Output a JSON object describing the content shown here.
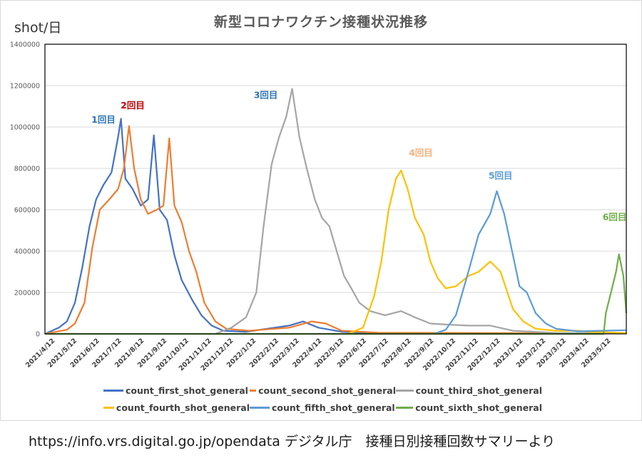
{
  "header": {
    "title": "新型コロナワクチン接種状況推移",
    "y_unit": "shot/日"
  },
  "footer": {
    "source": "https://info.vrs.digital.go.jp/opendata  デジタル庁　接種日別接種回数サマリーより"
  },
  "chart_data": {
    "type": "line",
    "title": "新型コロナワクチン接種状況推移",
    "ylabel": "shot/日",
    "ylim": [
      0,
      1400000
    ],
    "yticks": [
      0,
      200000,
      400000,
      600000,
      800000,
      1000000,
      1200000,
      1400000
    ],
    "xlim": [
      "2021-04-01",
      "2023-06-05"
    ],
    "xticks": [
      "2021/4/12",
      "2021/5/12",
      "2021/6/12",
      "2021/7/12",
      "2021/8/12",
      "2021/9/12",
      "2021/10/12",
      "2021/11/12",
      "2021/12/12",
      "2022/1/12",
      "2022/2/12",
      "2022/3/12",
      "2022/4/12",
      "2022/5/12",
      "2022/6/12",
      "2022/7/12",
      "2022/8/12",
      "2022/9/12",
      "2022/10/12",
      "2022/11/12",
      "2022/12/12",
      "2023/1/12",
      "2023/2/12",
      "2023/3/12",
      "2023/4/12",
      "2023/5/12"
    ],
    "grid": true,
    "legend_position": "bottom",
    "series": [
      {
        "name": "count_first_shot_general",
        "color": "#4472C4",
        "points": [
          [
            "2021-04-01",
            0
          ],
          [
            "2021-04-20",
            30000
          ],
          [
            "2021-05-01",
            60000
          ],
          [
            "2021-05-12",
            150000
          ],
          [
            "2021-05-22",
            320000
          ],
          [
            "2021-06-01",
            520000
          ],
          [
            "2021-06-10",
            650000
          ],
          [
            "2021-06-20",
            720000
          ],
          [
            "2021-07-01",
            780000
          ],
          [
            "2021-07-10",
            950000
          ],
          [
            "2021-07-14",
            1040000
          ],
          [
            "2021-07-20",
            750000
          ],
          [
            "2021-07-30",
            700000
          ],
          [
            "2021-08-10",
            620000
          ],
          [
            "2021-08-20",
            650000
          ],
          [
            "2021-08-28",
            960000
          ],
          [
            "2021-09-05",
            600000
          ],
          [
            "2021-09-15",
            550000
          ],
          [
            "2021-09-25",
            380000
          ],
          [
            "2021-10-05",
            260000
          ],
          [
            "2021-10-20",
            160000
          ],
          [
            "2021-11-01",
            90000
          ],
          [
            "2021-11-15",
            40000
          ],
          [
            "2021-12-01",
            15000
          ],
          [
            "2022-01-01",
            10000
          ],
          [
            "2022-03-01",
            40000
          ],
          [
            "2022-03-20",
            60000
          ],
          [
            "2022-04-10",
            30000
          ],
          [
            "2022-05-12",
            10000
          ],
          [
            "2022-07-01",
            5000
          ],
          [
            "2022-12-01",
            3000
          ],
          [
            "2023-06-05",
            2000
          ]
        ]
      },
      {
        "name": "count_second_shot_general",
        "color": "#ED7D31",
        "points": [
          [
            "2021-04-01",
            0
          ],
          [
            "2021-05-01",
            20000
          ],
          [
            "2021-05-12",
            50000
          ],
          [
            "2021-05-25",
            150000
          ],
          [
            "2021-06-05",
            420000
          ],
          [
            "2021-06-15",
            600000
          ],
          [
            "2021-06-28",
            650000
          ],
          [
            "2021-07-10",
            700000
          ],
          [
            "2021-07-18",
            800000
          ],
          [
            "2021-07-25",
            1005000
          ],
          [
            "2021-08-01",
            800000
          ],
          [
            "2021-08-10",
            650000
          ],
          [
            "2021-08-20",
            580000
          ],
          [
            "2021-09-01",
            600000
          ],
          [
            "2021-09-10",
            620000
          ],
          [
            "2021-09-18",
            945000
          ],
          [
            "2021-09-25",
            620000
          ],
          [
            "2021-10-05",
            540000
          ],
          [
            "2021-10-15",
            400000
          ],
          [
            "2021-10-25",
            300000
          ],
          [
            "2021-11-05",
            150000
          ],
          [
            "2021-11-20",
            60000
          ],
          [
            "2021-12-05",
            25000
          ],
          [
            "2022-01-05",
            15000
          ],
          [
            "2022-03-01",
            30000
          ],
          [
            "2022-04-01",
            60000
          ],
          [
            "2022-04-20",
            50000
          ],
          [
            "2022-05-12",
            15000
          ],
          [
            "2022-07-01",
            6000
          ],
          [
            "2023-06-05",
            2000
          ]
        ]
      },
      {
        "name": "count_third_shot_general",
        "color": "#A5A5A5",
        "points": [
          [
            "2021-11-20",
            0
          ],
          [
            "2021-12-12",
            30000
          ],
          [
            "2022-01-01",
            80000
          ],
          [
            "2022-01-15",
            200000
          ],
          [
            "2022-01-25",
            520000
          ],
          [
            "2022-02-05",
            820000
          ],
          [
            "2022-02-15",
            950000
          ],
          [
            "2022-02-25",
            1050000
          ],
          [
            "2022-03-05",
            1185000
          ],
          [
            "2022-03-15",
            950000
          ],
          [
            "2022-03-25",
            800000
          ],
          [
            "2022-04-05",
            650000
          ],
          [
            "2022-04-15",
            560000
          ],
          [
            "2022-04-25",
            520000
          ],
          [
            "2022-05-05",
            400000
          ],
          [
            "2022-05-15",
            280000
          ],
          [
            "2022-05-25",
            220000
          ],
          [
            "2022-06-05",
            150000
          ],
          [
            "2022-06-20",
            110000
          ],
          [
            "2022-07-10",
            90000
          ],
          [
            "2022-08-01",
            110000
          ],
          [
            "2022-08-20",
            80000
          ],
          [
            "2022-09-10",
            50000
          ],
          [
            "2022-10-01",
            45000
          ],
          [
            "2022-11-01",
            40000
          ],
          [
            "2022-12-01",
            40000
          ],
          [
            "2023-01-01",
            15000
          ],
          [
            "2023-03-01",
            5000
          ],
          [
            "2023-06-05",
            2000
          ]
        ]
      },
      {
        "name": "count_fourth_shot_general",
        "color": "#FFC000",
        "points": [
          [
            "2022-05-20",
            0
          ],
          [
            "2022-06-10",
            30000
          ],
          [
            "2022-06-25",
            180000
          ],
          [
            "2022-07-05",
            350000
          ],
          [
            "2022-07-15",
            600000
          ],
          [
            "2022-07-25",
            750000
          ],
          [
            "2022-08-01",
            790000
          ],
          [
            "2022-08-10",
            700000
          ],
          [
            "2022-08-20",
            560000
          ],
          [
            "2022-09-01",
            480000
          ],
          [
            "2022-09-10",
            350000
          ],
          [
            "2022-09-20",
            270000
          ],
          [
            "2022-10-01",
            220000
          ],
          [
            "2022-10-15",
            230000
          ],
          [
            "2022-11-01",
            280000
          ],
          [
            "2022-11-15",
            300000
          ],
          [
            "2022-12-01",
            350000
          ],
          [
            "2022-12-15",
            300000
          ],
          [
            "2023-01-01",
            120000
          ],
          [
            "2023-01-15",
            60000
          ],
          [
            "2023-02-01",
            25000
          ],
          [
            "2023-03-01",
            15000
          ],
          [
            "2023-04-01",
            15000
          ],
          [
            "2023-04-15",
            10000
          ],
          [
            "2023-06-05",
            4000
          ]
        ]
      },
      {
        "name": "count_fifth_shot_general",
        "color": "#5B9BD5",
        "points": [
          [
            "2022-09-15",
            0
          ],
          [
            "2022-10-01",
            20000
          ],
          [
            "2022-10-15",
            90000
          ],
          [
            "2022-11-01",
            300000
          ],
          [
            "2022-11-15",
            480000
          ],
          [
            "2022-12-01",
            580000
          ],
          [
            "2022-12-10",
            690000
          ],
          [
            "2022-12-20",
            580000
          ],
          [
            "2023-01-01",
            380000
          ],
          [
            "2023-01-10",
            230000
          ],
          [
            "2023-01-20",
            200000
          ],
          [
            "2023-02-01",
            100000
          ],
          [
            "2023-02-15",
            50000
          ],
          [
            "2023-03-01",
            25000
          ],
          [
            "2023-04-01",
            12000
          ],
          [
            "2023-05-01",
            15000
          ],
          [
            "2023-06-05",
            18000
          ]
        ]
      },
      {
        "name": "count_sixth_shot_general",
        "color": "#70AD47",
        "points": [
          [
            "2021-04-01",
            0
          ],
          [
            "2023-05-05",
            0
          ],
          [
            "2023-05-08",
            100000
          ],
          [
            "2023-05-15",
            200000
          ],
          [
            "2023-05-22",
            300000
          ],
          [
            "2023-05-26",
            385000
          ],
          [
            "2023-06-01",
            280000
          ],
          [
            "2023-06-05",
            100000
          ]
        ]
      }
    ],
    "annotations": [
      {
        "text": "1回目",
        "color": "#2E75B6",
        "x": "2021-06-20",
        "y": 1020000
      },
      {
        "text": "2回目",
        "color": "#C00000",
        "x": "2021-07-30",
        "y": 1090000
      },
      {
        "text": "3回目",
        "color": "#2E75B6",
        "x": "2022-01-28",
        "y": 1140000
      },
      {
        "text": "4回目",
        "color": "#F4B183",
        "x": "2022-08-28",
        "y": 860000
      },
      {
        "text": "5回目",
        "color": "#5B9BD5",
        "x": "2022-12-15",
        "y": 750000
      },
      {
        "text": "6回目",
        "color": "#70AD47",
        "x": "2023-05-20",
        "y": 550000
      }
    ]
  }
}
